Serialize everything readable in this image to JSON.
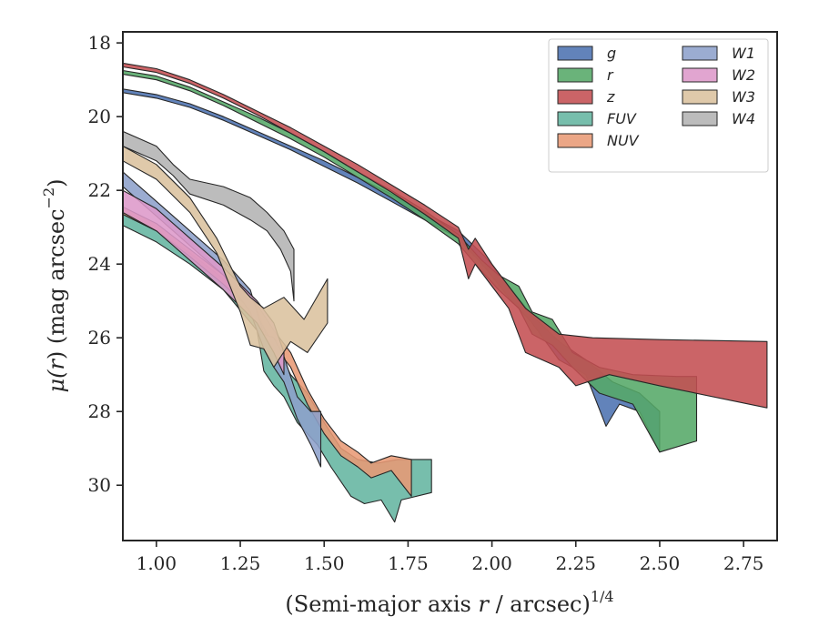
{
  "chart_data": {
    "type": "area",
    "xlabel_main": "(Semi-major axis ",
    "xlabel_var": "r",
    "xlabel_rest": " / arcsec)",
    "xlabel_sup": "1/4",
    "ylabel_main": "μ(",
    "ylabel_var": "r",
    "ylabel_rest": ") (mag arcsec",
    "ylabel_sup": "−2",
    "ylabel_close": ")",
    "xlim": [
      0.9,
      2.85
    ],
    "ylim": [
      31.5,
      17.7
    ],
    "xticks": [
      1.0,
      1.25,
      1.5,
      1.75,
      2.0,
      2.25,
      2.5,
      2.75
    ],
    "xtick_labels": [
      "1.00",
      "1.25",
      "1.50",
      "1.75",
      "2.00",
      "2.25",
      "2.50",
      "2.75"
    ],
    "yticks": [
      18,
      20,
      22,
      24,
      26,
      28,
      30
    ],
    "ytick_labels": [
      "18",
      "20",
      "22",
      "24",
      "26",
      "28",
      "30"
    ],
    "grid": false,
    "legend_placement": "top-right",
    "legend_columns": 2,
    "series": [
      {
        "name": "g",
        "color": "#4c72b0",
        "upper": [
          [
            0.9,
            19.25
          ],
          [
            1.0,
            19.4
          ],
          [
            1.1,
            19.65
          ],
          [
            1.2,
            20.0
          ],
          [
            1.3,
            20.4
          ],
          [
            1.4,
            20.8
          ],
          [
            1.5,
            21.2
          ],
          [
            1.6,
            21.65
          ],
          [
            1.7,
            22.1
          ],
          [
            1.8,
            22.6
          ],
          [
            1.9,
            23.1
          ],
          [
            1.98,
            23.8
          ],
          [
            2.05,
            24.6
          ],
          [
            2.12,
            25.4
          ],
          [
            2.2,
            26.1
          ],
          [
            2.28,
            26.6
          ],
          [
            2.36,
            27.2
          ],
          [
            2.44,
            27.5
          ],
          [
            2.5,
            28.0
          ]
        ],
        "lower": [
          [
            0.9,
            19.35
          ],
          [
            1.0,
            19.5
          ],
          [
            1.1,
            19.75
          ],
          [
            1.2,
            20.1
          ],
          [
            1.3,
            20.5
          ],
          [
            1.4,
            20.9
          ],
          [
            1.5,
            21.35
          ],
          [
            1.6,
            21.8
          ],
          [
            1.7,
            22.3
          ],
          [
            1.8,
            22.8
          ],
          [
            1.9,
            23.3
          ],
          [
            1.98,
            24.1
          ],
          [
            2.05,
            24.9
          ],
          [
            2.12,
            25.6
          ],
          [
            2.2,
            26.6
          ],
          [
            2.28,
            27.0
          ],
          [
            2.34,
            28.4
          ],
          [
            2.38,
            27.8
          ],
          [
            2.44,
            28.0
          ],
          [
            2.5,
            29.1
          ]
        ]
      },
      {
        "name": "r",
        "color": "#55a868",
        "upper": [
          [
            0.9,
            18.75
          ],
          [
            1.0,
            18.9
          ],
          [
            1.1,
            19.2
          ],
          [
            1.2,
            19.6
          ],
          [
            1.3,
            20.0
          ],
          [
            1.4,
            20.45
          ],
          [
            1.5,
            20.95
          ],
          [
            1.6,
            21.5
          ],
          [
            1.7,
            22.0
          ],
          [
            1.8,
            22.55
          ],
          [
            1.9,
            23.2
          ],
          [
            1.97,
            23.9
          ],
          [
            2.02,
            24.3
          ],
          [
            2.08,
            24.6
          ],
          [
            2.12,
            25.3
          ],
          [
            2.18,
            25.5
          ],
          [
            2.24,
            26.4
          ],
          [
            2.32,
            26.8
          ],
          [
            2.42,
            27.0
          ],
          [
            2.55,
            27.05
          ],
          [
            2.61,
            27.05
          ]
        ],
        "lower": [
          [
            0.9,
            18.85
          ],
          [
            1.0,
            19.0
          ],
          [
            1.1,
            19.3
          ],
          [
            1.2,
            19.7
          ],
          [
            1.3,
            20.15
          ],
          [
            1.4,
            20.6
          ],
          [
            1.5,
            21.1
          ],
          [
            1.6,
            21.65
          ],
          [
            1.7,
            22.2
          ],
          [
            1.8,
            22.8
          ],
          [
            1.9,
            23.45
          ],
          [
            1.97,
            24.2
          ],
          [
            2.02,
            24.7
          ],
          [
            2.08,
            25.2
          ],
          [
            2.12,
            25.9
          ],
          [
            2.18,
            26.2
          ],
          [
            2.24,
            26.8
          ],
          [
            2.32,
            27.5
          ],
          [
            2.42,
            27.8
          ],
          [
            2.5,
            29.1
          ],
          [
            2.61,
            28.8
          ]
        ]
      },
      {
        "name": "z",
        "color": "#c44e52",
        "upper": [
          [
            0.9,
            18.55
          ],
          [
            1.0,
            18.7
          ],
          [
            1.1,
            19.0
          ],
          [
            1.2,
            19.4
          ],
          [
            1.3,
            19.85
          ],
          [
            1.4,
            20.3
          ],
          [
            1.5,
            20.8
          ],
          [
            1.6,
            21.3
          ],
          [
            1.7,
            21.85
          ],
          [
            1.8,
            22.4
          ],
          [
            1.9,
            23.0
          ],
          [
            1.93,
            23.6
          ],
          [
            1.95,
            23.3
          ],
          [
            2.0,
            24.0
          ],
          [
            2.05,
            24.6
          ],
          [
            2.1,
            25.2
          ],
          [
            2.2,
            25.9
          ],
          [
            2.3,
            26.0
          ],
          [
            2.5,
            26.05
          ],
          [
            2.82,
            26.1
          ]
        ],
        "lower": [
          [
            0.9,
            18.65
          ],
          [
            1.0,
            18.8
          ],
          [
            1.1,
            19.1
          ],
          [
            1.2,
            19.5
          ],
          [
            1.3,
            19.95
          ],
          [
            1.4,
            20.45
          ],
          [
            1.5,
            20.95
          ],
          [
            1.6,
            21.5
          ],
          [
            1.7,
            22.05
          ],
          [
            1.8,
            22.65
          ],
          [
            1.9,
            23.3
          ],
          [
            1.93,
            24.4
          ],
          [
            1.95,
            24.0
          ],
          [
            2.0,
            24.6
          ],
          [
            2.05,
            25.2
          ],
          [
            2.1,
            26.4
          ],
          [
            2.2,
            26.8
          ],
          [
            2.25,
            27.3
          ],
          [
            2.35,
            27.0
          ],
          [
            2.5,
            27.3
          ],
          [
            2.82,
            27.9
          ]
        ]
      },
      {
        "name": "FUV",
        "color": "#64b5a0",
        "upper": [
          [
            0.9,
            22.65
          ],
          [
            1.0,
            23.1
          ],
          [
            1.1,
            23.7
          ],
          [
            1.2,
            24.4
          ],
          [
            1.3,
            25.2
          ],
          [
            1.33,
            26.0
          ],
          [
            1.36,
            26.3
          ],
          [
            1.4,
            27.0
          ],
          [
            1.45,
            27.5
          ],
          [
            1.5,
            28.3
          ],
          [
            1.55,
            29.0
          ],
          [
            1.6,
            29.3
          ],
          [
            1.66,
            29.4
          ],
          [
            1.72,
            29.3
          ],
          [
            1.82,
            29.3
          ]
        ],
        "lower": [
          [
            0.9,
            22.95
          ],
          [
            1.0,
            23.4
          ],
          [
            1.1,
            24.0
          ],
          [
            1.2,
            24.7
          ],
          [
            1.3,
            25.8
          ],
          [
            1.32,
            26.9
          ],
          [
            1.35,
            27.3
          ],
          [
            1.38,
            27.6
          ],
          [
            1.42,
            28.3
          ],
          [
            1.48,
            28.9
          ],
          [
            1.52,
            29.5
          ],
          [
            1.58,
            30.3
          ],
          [
            1.62,
            30.5
          ],
          [
            1.67,
            30.4
          ],
          [
            1.71,
            31.0
          ],
          [
            1.73,
            30.4
          ],
          [
            1.82,
            30.2
          ]
        ]
      },
      {
        "name": "NUV",
        "color": "#e89a75",
        "upper": [
          [
            0.9,
            22.45
          ],
          [
            1.0,
            22.9
          ],
          [
            1.1,
            23.6
          ],
          [
            1.2,
            24.3
          ],
          [
            1.3,
            25.1
          ],
          [
            1.35,
            25.8
          ],
          [
            1.4,
            26.4
          ],
          [
            1.45,
            27.4
          ],
          [
            1.5,
            28.2
          ],
          [
            1.55,
            28.8
          ],
          [
            1.6,
            29.1
          ],
          [
            1.64,
            29.4
          ],
          [
            1.7,
            29.2
          ],
          [
            1.76,
            29.3
          ]
        ],
        "lower": [
          [
            0.9,
            22.65
          ],
          [
            1.0,
            23.1
          ],
          [
            1.1,
            23.8
          ],
          [
            1.2,
            24.55
          ],
          [
            1.3,
            25.4
          ],
          [
            1.35,
            26.2
          ],
          [
            1.4,
            26.8
          ],
          [
            1.45,
            27.8
          ],
          [
            1.5,
            28.6
          ],
          [
            1.55,
            29.2
          ],
          [
            1.6,
            29.5
          ],
          [
            1.64,
            29.8
          ],
          [
            1.7,
            29.6
          ],
          [
            1.76,
            30.3
          ]
        ]
      },
      {
        "name": "W1",
        "color": "#8da0cb",
        "upper": [
          [
            0.9,
            21.5
          ],
          [
            1.0,
            22.3
          ],
          [
            1.1,
            23.1
          ],
          [
            1.2,
            23.9
          ],
          [
            1.28,
            24.7
          ],
          [
            1.32,
            25.9
          ],
          [
            1.35,
            26.0
          ],
          [
            1.38,
            26.5
          ],
          [
            1.42,
            27.6
          ],
          [
            1.46,
            28.0
          ],
          [
            1.49,
            28.0
          ]
        ],
        "lower": [
          [
            0.9,
            21.9
          ],
          [
            1.0,
            22.7
          ],
          [
            1.1,
            23.5
          ],
          [
            1.2,
            24.3
          ],
          [
            1.28,
            25.3
          ],
          [
            1.32,
            26.3
          ],
          [
            1.35,
            26.8
          ],
          [
            1.38,
            27.2
          ],
          [
            1.42,
            28.2
          ],
          [
            1.46,
            28.9
          ],
          [
            1.49,
            29.5
          ]
        ]
      },
      {
        "name": "W2",
        "color": "#dd99c9",
        "upper": [
          [
            0.9,
            22.0
          ],
          [
            1.0,
            22.5
          ],
          [
            1.1,
            23.3
          ],
          [
            1.2,
            24.1
          ],
          [
            1.3,
            25.0
          ],
          [
            1.35,
            25.6
          ],
          [
            1.38,
            26.4
          ]
        ],
        "lower": [
          [
            0.9,
            22.6
          ],
          [
            1.0,
            23.1
          ],
          [
            1.1,
            23.9
          ],
          [
            1.2,
            24.7
          ],
          [
            1.3,
            25.6
          ],
          [
            1.35,
            26.4
          ],
          [
            1.38,
            27.0
          ]
        ]
      },
      {
        "name": "W3",
        "color": "#dbc29e",
        "upper": [
          [
            0.9,
            20.8
          ],
          [
            1.0,
            21.3
          ],
          [
            1.1,
            22.2
          ],
          [
            1.18,
            23.3
          ],
          [
            1.25,
            24.6
          ],
          [
            1.28,
            24.9
          ],
          [
            1.32,
            25.2
          ],
          [
            1.38,
            24.9
          ],
          [
            1.44,
            25.5
          ],
          [
            1.51,
            24.4
          ]
        ],
        "lower": [
          [
            0.9,
            21.2
          ],
          [
            1.0,
            21.7
          ],
          [
            1.1,
            22.6
          ],
          [
            1.18,
            23.7
          ],
          [
            1.25,
            25.3
          ],
          [
            1.28,
            26.2
          ],
          [
            1.32,
            26.3
          ],
          [
            1.35,
            26.8
          ],
          [
            1.4,
            26.1
          ],
          [
            1.45,
            26.4
          ],
          [
            1.51,
            25.6
          ]
        ]
      },
      {
        "name": "W4",
        "color": "#b3b3b3",
        "upper": [
          [
            0.9,
            20.4
          ],
          [
            1.0,
            20.8
          ],
          [
            1.05,
            21.3
          ],
          [
            1.1,
            21.7
          ],
          [
            1.2,
            21.9
          ],
          [
            1.28,
            22.2
          ],
          [
            1.33,
            22.6
          ],
          [
            1.38,
            23.1
          ],
          [
            1.41,
            23.6
          ],
          [
            1.41,
            25.0
          ]
        ],
        "lower": [
          [
            0.9,
            20.8
          ],
          [
            1.0,
            21.2
          ],
          [
            1.05,
            21.6
          ],
          [
            1.1,
            22.1
          ],
          [
            1.2,
            22.4
          ],
          [
            1.28,
            22.8
          ],
          [
            1.33,
            23.1
          ],
          [
            1.37,
            23.6
          ],
          [
            1.4,
            24.2
          ],
          [
            1.41,
            25.0
          ]
        ]
      }
    ]
  }
}
